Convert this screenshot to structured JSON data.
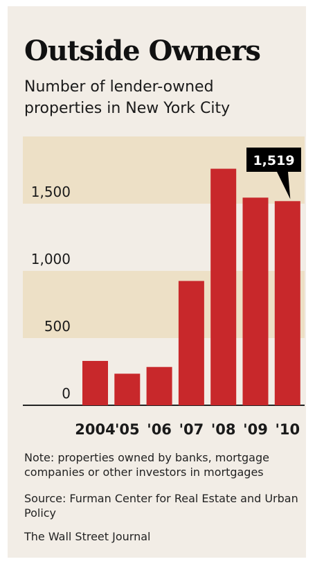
{
  "chart_data": {
    "type": "bar",
    "title": "Outside Owners",
    "subtitle": "Number of lender-owned properties in New York City",
    "categories": [
      "2004",
      "'05",
      "'06",
      "'07",
      "'08",
      "'09",
      "'10"
    ],
    "values": [
      330,
      235,
      285,
      925,
      1760,
      1545,
      1519
    ],
    "ylim": [
      0,
      2000
    ],
    "yticks": [
      0,
      500,
      1000,
      1500
    ],
    "ytick_labels": [
      "0",
      "500",
      "1,000",
      "1,500"
    ],
    "annotation": {
      "category": "'10",
      "label": "1,519"
    },
    "grid": "alternating bands",
    "note": "Note: properties owned by banks, mortgage companies or other investors in mortgages",
    "source": "Source: Furman Center for Real Estate and Urban Policy",
    "credit": "The Wall Street Journal",
    "colors": {
      "bar": "#c8282b",
      "band": "#ede0c6",
      "panel": "#f2ede6",
      "callout": "#000000"
    }
  }
}
